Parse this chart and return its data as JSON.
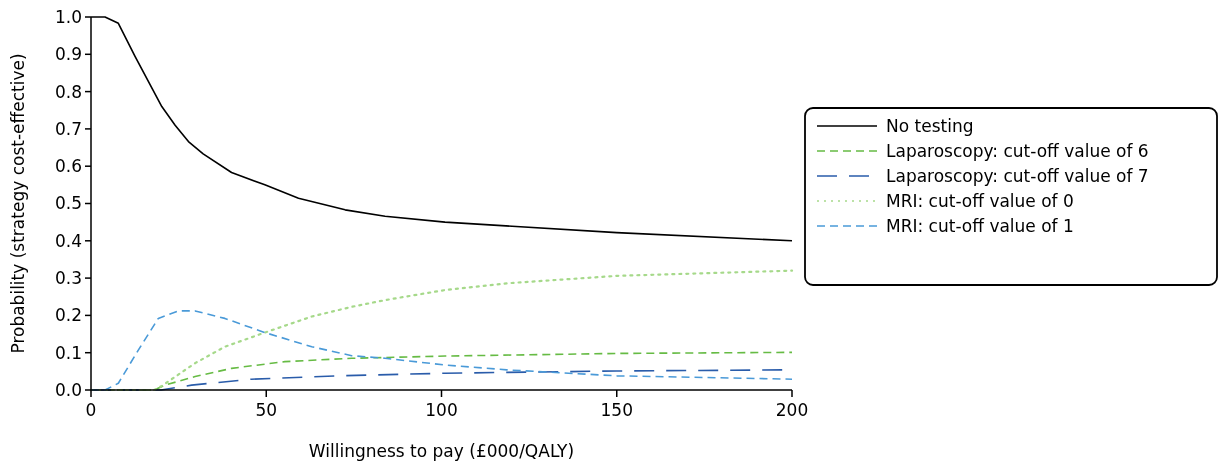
{
  "chart_data": {
    "type": "line",
    "xlabel": "Willingness to pay (£000/QALY)",
    "ylabel": "Probability (strategy cost-effective)",
    "xlim": [
      0,
      200
    ],
    "xticks": [
      0,
      50,
      100,
      150,
      200
    ],
    "ylim": [
      0,
      1
    ],
    "yticks": [
      {
        "value": 0,
        "label": "0.0"
      },
      {
        "value": 0.1,
        "label": "0.1"
      },
      {
        "value": 0.2,
        "label": "0.2"
      },
      {
        "value": 0.3,
        "label": "0.3"
      },
      {
        "value": 0.4,
        "label": "0.4"
      },
      {
        "value": 0.5,
        "label": "0.5"
      },
      {
        "value": 0.6,
        "label": "0.6"
      },
      {
        "value": 0.7,
        "label": "0.7"
      },
      {
        "value": 0.8,
        "label": "0.8"
      },
      {
        "value": 0.9,
        "label": "0.9"
      },
      {
        "value": 1,
        "label": "1.0"
      }
    ],
    "grid": false,
    "legend": "right",
    "marker": "none",
    "series": [
      {
        "name": "No testing",
        "color": "#000000",
        "line_style": "solid",
        "x": [
          0,
          4,
          7.8,
          12.6,
          20.2,
          24,
          27.8,
          32,
          40.1,
          49.6,
          59.2,
          72.5,
          83.9,
          101,
          150,
          200
        ],
        "values": [
          1,
          1,
          0.983,
          0.894,
          0.76,
          0.71,
          0.666,
          0.633,
          0.583,
          0.55,
          0.514,
          0.483,
          0.466,
          0.45,
          0.422,
          0.4
        ]
      },
      {
        "name": "Laparoscopy: cut-off value of 6",
        "color": "#66bb44",
        "line_style": "dashed",
        "x": [
          0,
          18,
          21.1,
          29.7,
          40.1,
          55.3,
          74.4,
          101,
          150,
          200
        ],
        "values": [
          0,
          0,
          0.013,
          0.036,
          0.058,
          0.076,
          0.085,
          0.091,
          0.098,
          0.101
        ]
      },
      {
        "name": "Laparoscopy: cut-off value of 7",
        "color": "#2a5caa",
        "line_style": "dashed",
        "x": [
          0,
          20,
          28.7,
          45.8,
          70.6,
          101,
          150,
          200
        ],
        "values": [
          0,
          0,
          0.013,
          0.029,
          0.038,
          0.045,
          0.051,
          0.054
        ]
      },
      {
        "name": "MRI: cut-off value of 0",
        "color": "#a6d98a",
        "line_style": "dotted",
        "x": [
          0,
          18,
          20.2,
          29.7,
          38.2,
          49.6,
          63,
          74.4,
          83.9,
          101,
          118.6,
          150,
          200
        ],
        "values": [
          0,
          0,
          0.011,
          0.072,
          0.116,
          0.154,
          0.197,
          0.223,
          0.241,
          0.268,
          0.286,
          0.306,
          0.32
        ]
      },
      {
        "name": "MRI: cut-off value of 1",
        "color": "#4a9ad8",
        "line_style": "dashed",
        "x": [
          0,
          4,
          7.8,
          13.5,
          19.2,
          24.9,
          29.7,
          38.2,
          49.6,
          63,
          74.4,
          83.9,
          101,
          118.6,
          150,
          200
        ],
        "values": [
          0,
          0,
          0.018,
          0.107,
          0.192,
          0.212,
          0.212,
          0.192,
          0.154,
          0.116,
          0.092,
          0.085,
          0.067,
          0.054,
          0.038,
          0.029
        ]
      }
    ]
  }
}
